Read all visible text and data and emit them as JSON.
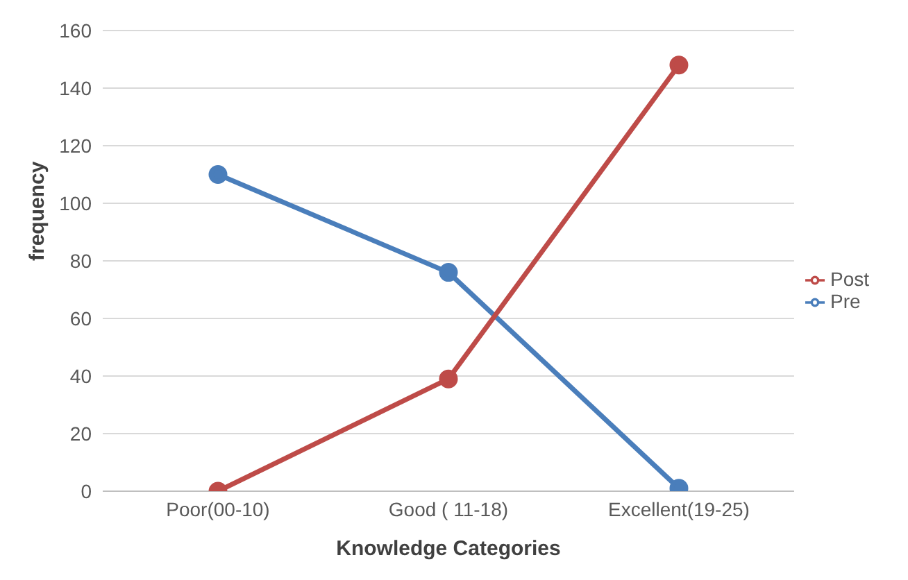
{
  "chart_data": {
    "type": "line",
    "xlabel": "Knowledge Categories",
    "ylabel": "frequency",
    "categories": [
      "Poor(00-10)",
      "Good ( 11-18)",
      "Excellent(19-25)"
    ],
    "series": [
      {
        "name": "Pre",
        "color": "#4a7ebb",
        "values": [
          110,
          76,
          1
        ]
      },
      {
        "name": "Post",
        "color": "#be4b48",
        "values": [
          0,
          39,
          148
        ]
      }
    ],
    "ylim": [
      0,
      160
    ],
    "yticks": [
      0,
      20,
      40,
      60,
      80,
      100,
      120,
      140,
      160
    ],
    "grid": "y",
    "legend": "right",
    "marker": "circle",
    "line_style": "solid"
  }
}
